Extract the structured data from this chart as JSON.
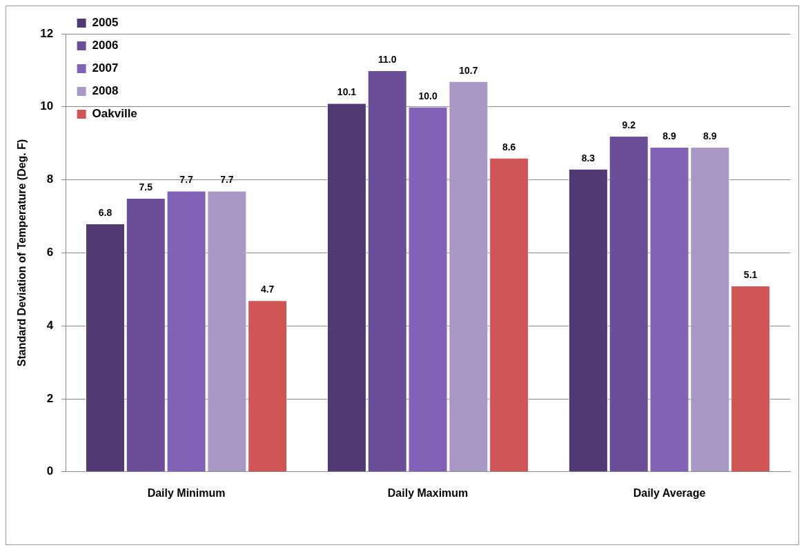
{
  "chart_data": {
    "type": "bar",
    "ylabel": "Standard Deviation of Temperature (Deg. F)",
    "categories": [
      "Daily Minimum",
      "Daily Maximum",
      "Daily Average"
    ],
    "series": [
      {
        "name": "2005",
        "color": "#503a74",
        "values": [
          6.8,
          10.1,
          8.3
        ],
        "value_labels": [
          "6.8",
          "10.1",
          "8.3"
        ]
      },
      {
        "name": "2006",
        "color": "#6a4f98",
        "values": [
          7.5,
          11.0,
          9.2
        ],
        "value_labels": [
          "7.5",
          "11.0",
          "9.2"
        ]
      },
      {
        "name": "2007",
        "color": "#8262b6",
        "values": [
          7.7,
          10.0,
          8.9
        ],
        "value_labels": [
          "7.7",
          "10.0",
          "8.9"
        ]
      },
      {
        "name": "2008",
        "color": "#a898c6",
        "values": [
          7.7,
          10.7,
          8.9
        ],
        "value_labels": [
          "7.7",
          "10.7",
          "8.9"
        ]
      },
      {
        "name": "Oakville",
        "color": "#d05656",
        "values": [
          4.7,
          8.6,
          5.1
        ],
        "value_labels": [
          "4.7",
          "8.6",
          "5.1"
        ]
      }
    ],
    "ylim": [
      0,
      12
    ],
    "yticks": [
      0,
      2,
      4,
      6,
      8,
      10,
      12
    ],
    "grid": "y",
    "legend": "top left"
  }
}
